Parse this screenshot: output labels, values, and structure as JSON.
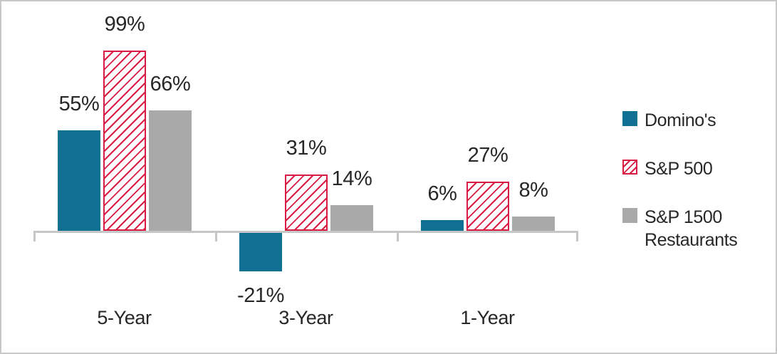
{
  "frame": {
    "background": "#ffffff",
    "border_color": "#c8c8c8"
  },
  "chart_data": {
    "type": "bar",
    "categories": [
      "5-Year",
      "3-Year",
      "1-Year"
    ],
    "series": [
      {
        "name": "Domino's",
        "style": "solid",
        "color": "#0f7094",
        "values": [
          55,
          -21,
          6
        ],
        "labels": [
          "55%",
          "-21%",
          "6%"
        ]
      },
      {
        "name": "S&P 500",
        "style": "hatched",
        "color": "#da1c45",
        "values": [
          99,
          31,
          27
        ],
        "labels": [
          "99%",
          "31%",
          "27%"
        ]
      },
      {
        "name": "S&P 1500 Restaurants",
        "style": "solid",
        "color": "#a9a9a9",
        "values": [
          66,
          14,
          8
        ],
        "labels": [
          "66%",
          "14%",
          "8%"
        ]
      }
    ],
    "value_label_suffix": "%",
    "ylim": [
      -30,
      110
    ],
    "grid": false,
    "axis_color": "#c6c6c6",
    "text_color": "#272727",
    "legend_position": "right",
    "legend_items": [
      {
        "series": "Domino's",
        "lines": [
          "Domino's"
        ]
      },
      {
        "series": "S&P 500",
        "lines": [
          "S&P 500"
        ]
      },
      {
        "series": "S&P 1500 Restaurants",
        "lines": [
          "S&P 1500",
          "Restaurants"
        ]
      }
    ]
  }
}
